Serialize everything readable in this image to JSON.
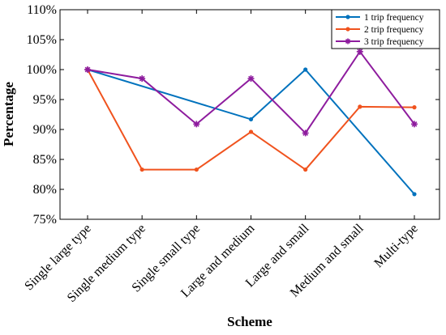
{
  "chart_data": {
    "type": "line",
    "title": "",
    "xlabel": "Scheme",
    "ylabel": "Percentage",
    "categories": [
      "Single large type",
      "Single medium type",
      "Single small  type",
      "Large and medium",
      "Large and small",
      "Medium and small",
      "Multi-type"
    ],
    "ylim": [
      75,
      110
    ],
    "yticks": [
      75,
      80,
      85,
      90,
      95,
      100,
      105,
      110
    ],
    "ytick_labels": [
      "75%",
      "80%",
      "85%",
      "90%",
      "95%",
      "100%",
      "105%",
      "110%"
    ],
    "grid": false,
    "legend_position": "top-right",
    "series": [
      {
        "name": "1 trip frequency",
        "color": "#0072BD",
        "marker": "circle",
        "points": [
          [
            0,
            100
          ],
          [
            3,
            91.7
          ],
          [
            4,
            100
          ],
          [
            6,
            79.2
          ]
        ]
      },
      {
        "name": "2 trip frequency",
        "color": "#F0531E",
        "marker": "circle",
        "points": [
          [
            0,
            100
          ],
          [
            1,
            83.3
          ],
          [
            2,
            83.3
          ],
          [
            3,
            89.6
          ],
          [
            4,
            83.3
          ],
          [
            5,
            93.8
          ],
          [
            6,
            93.7
          ]
        ]
      },
      {
        "name": "3 trip frequency",
        "color": "#8E1C9E",
        "marker": "star",
        "points": [
          [
            0,
            100
          ],
          [
            1,
            98.5
          ],
          [
            2,
            90.9
          ],
          [
            3,
            98.5
          ],
          [
            4,
            89.4
          ],
          [
            5,
            103.0
          ],
          [
            6,
            90.9
          ]
        ]
      }
    ]
  }
}
